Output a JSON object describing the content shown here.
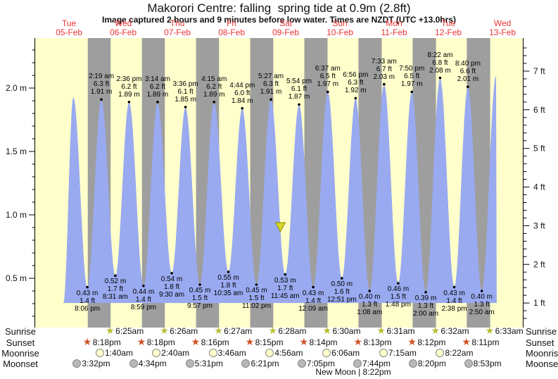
{
  "title": "Makorori Centre: falling  spring tide at 0.9m (2.8ft)",
  "subtitle": "Image captured 2 hours and 9 minutes before low water. Times are NZDT (UTC +13.0hrs)",
  "chart_data": {
    "type": "area",
    "x_axis": {
      "unit": "days",
      "hours_per_day": 24
    },
    "days": [
      {
        "dow": "Tue",
        "date": "05-Feb"
      },
      {
        "dow": "Wed",
        "date": "06-Feb"
      },
      {
        "dow": "Thu",
        "date": "07-Feb"
      },
      {
        "dow": "Fri",
        "date": "08-Feb"
      },
      {
        "dow": "Sat",
        "date": "09-Feb"
      },
      {
        "dow": "Sun",
        "date": "10-Feb"
      },
      {
        "dow": "Mon",
        "date": "11-Feb"
      },
      {
        "dow": "Tue",
        "date": "12-Feb"
      },
      {
        "dow": "Wed",
        "date": "13-Feb"
      }
    ],
    "y_axis_left": {
      "unit": "m",
      "majors": [
        {
          "v": 0.5,
          "label": "0.5 m"
        },
        {
          "v": 1.0,
          "label": "1.0 m"
        },
        {
          "v": 1.5,
          "label": "1.5 m"
        },
        {
          "v": 2.0,
          "label": "2.0 m"
        }
      ],
      "minor_step": 0.1
    },
    "y_axis_right": {
      "unit": "ft",
      "majors": [
        {
          "v": 1,
          "label": "1 ft"
        },
        {
          "v": 2,
          "label": "2 ft"
        },
        {
          "v": 3,
          "label": "3 ft"
        },
        {
          "v": 4,
          "label": "4 ft"
        },
        {
          "v": 5,
          "label": "5 ft"
        },
        {
          "v": 6,
          "label": "6 ft"
        },
        {
          "v": 7,
          "label": "7 ft"
        }
      ],
      "minor_step": 0.2
    },
    "tide_events": [
      {
        "kind": "high",
        "t": 13.9,
        "m": 1.93
      },
      {
        "kind": "low",
        "time": "8:06 pm",
        "ft": 1.4,
        "m": 0.43,
        "t": 20.1
      },
      {
        "kind": "high",
        "time": "2:19 am",
        "ft": 6.3,
        "m": 1.91,
        "t": 26.32
      },
      {
        "kind": "low",
        "time": "8:31 am",
        "ft": 1.7,
        "m": 0.52,
        "t": 32.52
      },
      {
        "kind": "high",
        "time": "2:36 pm",
        "ft": 6.2,
        "m": 1.89,
        "t": 38.6
      },
      {
        "kind": "low",
        "time": "8:59 pm",
        "ft": 1.4,
        "m": 0.44,
        "t": 44.98
      },
      {
        "kind": "high",
        "time": "3:14 am",
        "ft": 6.2,
        "m": 1.89,
        "t": 51.23
      },
      {
        "kind": "low",
        "time": "9:30 am",
        "ft": 1.8,
        "m": 0.54,
        "t": 57.5
      },
      {
        "kind": "high",
        "time": "3:36 pm",
        "ft": 6.1,
        "m": 1.85,
        "t": 63.6
      },
      {
        "kind": "low",
        "time": "9:57 pm",
        "ft": 1.5,
        "m": 0.45,
        "t": 69.95
      },
      {
        "kind": "high",
        "time": "4:15 am",
        "ft": 6.2,
        "m": 1.89,
        "t": 76.25
      },
      {
        "kind": "low",
        "time": "10:35 am",
        "ft": 1.8,
        "m": 0.55,
        "t": 82.58
      },
      {
        "kind": "high",
        "time": "4:44 pm",
        "ft": 6.0,
        "m": 1.84,
        "t": 88.73
      },
      {
        "kind": "low",
        "time": "11:02 pm",
        "ft": 1.5,
        "m": 0.45,
        "t": 95.03
      },
      {
        "kind": "high",
        "time": "5:27 am",
        "ft": 6.3,
        "m": 1.91,
        "t": 101.45
      },
      {
        "kind": "low",
        "time": "11:45 am",
        "ft": 1.7,
        "m": 0.53,
        "t": 107.75
      },
      {
        "kind": "high",
        "time": "5:54 pm",
        "ft": 6.1,
        "m": 1.87,
        "t": 113.9
      },
      {
        "kind": "low",
        "time": "12:09 am",
        "ft": 1.4,
        "m": 0.43,
        "t": 120.15
      },
      {
        "kind": "high",
        "time": "6:37 am",
        "ft": 6.5,
        "m": 1.97,
        "t": 126.62
      },
      {
        "kind": "low",
        "time": "12:51 pm",
        "ft": 1.6,
        "m": 0.5,
        "t": 132.85
      },
      {
        "kind": "high",
        "time": "6:56 pm",
        "ft": 6.3,
        "m": 1.92,
        "t": 138.93
      },
      {
        "kind": "low",
        "time": "1:08 am",
        "ft": 1.3,
        "m": 0.4,
        "t": 145.13
      },
      {
        "kind": "high",
        "time": "7:33 am",
        "ft": 6.7,
        "m": 2.03,
        "t": 151.55
      },
      {
        "kind": "low",
        "time": "1:48 pm",
        "ft": 1.5,
        "m": 0.46,
        "t": 157.8
      },
      {
        "kind": "high",
        "time": "7:50 pm",
        "ft": 6.5,
        "m": 1.97,
        "t": 163.83
      },
      {
        "kind": "low",
        "time": "2:00 am",
        "ft": 1.3,
        "m": 0.39,
        "t": 170.0
      },
      {
        "kind": "high",
        "time": "8:22 am",
        "ft": 6.8,
        "m": 2.08,
        "t": 176.37
      },
      {
        "kind": "low",
        "time": "2:38 pm",
        "ft": 1.4,
        "m": 0.43,
        "t": 182.63
      },
      {
        "kind": "high",
        "time": "8:40 pm",
        "ft": 6.6,
        "m": 2.01,
        "t": 188.67
      },
      {
        "kind": "low",
        "time": "2:50 am",
        "ft": 1.3,
        "m": 0.4,
        "t": 194.83
      },
      {
        "kind": "high",
        "t": 201.17,
        "m": 2.1
      }
    ],
    "curve": {
      "start_t": 9.5,
      "end_t": 201.45,
      "base_m": 0.3048
    },
    "current_marker": {
      "t": 105.6,
      "m": 0.9
    },
    "colors": {
      "day": "#ffffcc",
      "night": "#9e9e9e",
      "tide": "#99aaf0",
      "day_label": "#ee3333",
      "marker_fill": "#d6d62a",
      "marker_stroke": "#8a8a00",
      "sunrise_star": "#b8bc34",
      "sunset_star": "#cf5226",
      "moonrise_fill": "#ffffcc",
      "moonset_fill": "#b8b8b8"
    }
  },
  "astro": {
    "sunrise": {
      "label": "Sunrise",
      "icon": "star",
      "events": [
        {
          "day": 1,
          "time": "6:25am"
        },
        {
          "day": 2,
          "time": "6:26am"
        },
        {
          "day": 3,
          "time": "6:27am"
        },
        {
          "day": 4,
          "time": "6:28am"
        },
        {
          "day": 5,
          "time": "6:30am"
        },
        {
          "day": 6,
          "time": "6:31am"
        },
        {
          "day": 7,
          "time": "6:32am"
        },
        {
          "day": 8,
          "time": "6:33am"
        }
      ]
    },
    "sunset": {
      "label": "Sunset",
      "icon": "star",
      "events": [
        {
          "day": 0,
          "time": "8:18pm"
        },
        {
          "day": 1,
          "time": "8:18pm"
        },
        {
          "day": 2,
          "time": "8:16pm"
        },
        {
          "day": 3,
          "time": "8:15pm"
        },
        {
          "day": 4,
          "time": "8:14pm"
        },
        {
          "day": 5,
          "time": "8:13pm"
        },
        {
          "day": 6,
          "time": "8:12pm"
        },
        {
          "day": 7,
          "time": "8:11pm"
        }
      ]
    },
    "moonrise": {
      "label": "Moonrise",
      "icon": "circle",
      "events": [
        {
          "day": 1,
          "time": "1:40am"
        },
        {
          "day": 2,
          "time": "2:40am"
        },
        {
          "day": 3,
          "time": "3:46am"
        },
        {
          "day": 4,
          "time": "4:56am"
        },
        {
          "day": 5,
          "time": "6:06am"
        },
        {
          "day": 6,
          "time": "7:15am"
        },
        {
          "day": 7,
          "time": "8:22am"
        }
      ]
    },
    "moonset": {
      "label": "Moonset",
      "icon": "circle",
      "events": [
        {
          "day": 0,
          "time": "3:32pm"
        },
        {
          "day": 1,
          "time": "4:34pm"
        },
        {
          "day": 2,
          "time": "5:31pm"
        },
        {
          "day": 3,
          "time": "6:21pm"
        },
        {
          "day": 4,
          "time": "7:05pm"
        },
        {
          "day": 5,
          "time": "7:44pm"
        },
        {
          "day": 6,
          "time": "8:20pm"
        },
        {
          "day": 7,
          "time": "8:53pm"
        }
      ]
    }
  },
  "new_moon": "New Moon | 8:22pm"
}
